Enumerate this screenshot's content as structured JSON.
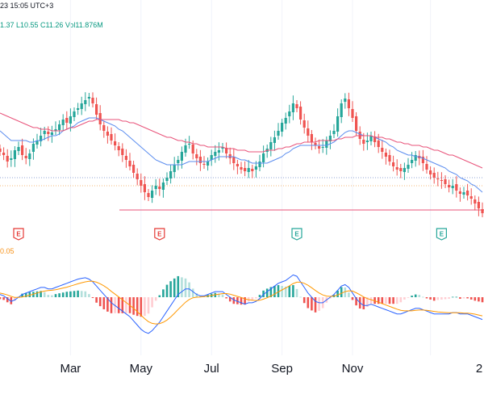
{
  "header": {
    "date_text": "23 15:05 UTC+3",
    "ohlc_text": "1.37  L10.55  C11.26  Vol11.876M"
  },
  "macd_label": "0.05",
  "colors": {
    "up": "#26a69a",
    "down": "#ef5350",
    "ma_blue": "#5b8def",
    "ma_red": "#e8537a",
    "macd_line": "#2962ff",
    "signal_line": "#ff9800",
    "hist_up": "#26a69a",
    "hist_up_light": "#b2dfdb",
    "hist_down": "#ef5350",
    "hist_down_light": "#ffcdd2",
    "support": "#e8537a",
    "earnings_red": "#e53935",
    "earnings_green": "#26a69a"
  },
  "chart_data": {
    "type": "candlestick",
    "x_axis_labels": [
      "Mar",
      "May",
      "Jul",
      "Sep",
      "Nov",
      "2"
    ],
    "earnings_markers": [
      {
        "label": "E",
        "color": "red"
      },
      {
        "label": "E",
        "color": "red"
      },
      {
        "label": "E",
        "color": "green"
      },
      {
        "label": "E",
        "color": "green"
      }
    ],
    "price_closes": [
      13.6,
      13.4,
      13.0,
      13.2,
      13.7,
      13.9,
      13.4,
      13.2,
      13.5,
      14.1,
      14.3,
      14.6,
      14.9,
      14.7,
      14.8,
      15.0,
      15.3,
      15.6,
      15.4,
      15.8,
      16.1,
      16.3,
      16.6,
      16.8,
      17.0,
      16.6,
      15.9,
      15.3,
      14.9,
      14.6,
      14.3,
      14.0,
      13.7,
      13.4,
      13.1,
      12.7,
      12.3,
      11.9,
      11.5,
      11.1,
      10.8,
      11.2,
      11.5,
      11.3,
      11.7,
      12.0,
      12.4,
      12.8,
      13.1,
      13.6,
      14.0,
      14.1,
      13.5,
      13.2,
      12.9,
      12.8,
      13.0,
      13.4,
      13.6,
      13.7,
      13.9,
      13.5,
      13.2,
      12.9,
      12.7,
      12.5,
      12.4,
      12.6,
      12.4,
      12.7,
      13.0,
      13.5,
      13.8,
      14.2,
      14.5,
      14.9,
      15.4,
      15.7,
      16.1,
      16.6,
      16.3,
      15.6,
      15.1,
      14.6,
      14.2,
      14.0,
      13.8,
      13.9,
      14.3,
      14.6,
      14.9,
      15.8,
      16.6,
      16.9,
      16.3,
      15.7,
      14.9,
      14.4,
      14.1,
      14.3,
      14.6,
      14.2,
      13.9,
      13.6,
      13.3,
      13.0,
      12.7,
      12.5,
      12.4,
      12.6,
      12.8,
      13.1,
      13.4,
      13.2,
      12.9,
      12.5,
      12.2,
      12.0,
      11.9,
      11.8,
      11.6,
      11.4,
      11.5,
      11.2,
      11.0,
      11.1,
      10.9,
      10.7,
      10.4,
      10.1,
      9.8
    ],
    "series": [
      {
        "name": "MA blue",
        "values": [
          14.9,
          14.7,
          14.5,
          14.3,
          14.3,
          14.3,
          14.3,
          14.3,
          14.2,
          14.2,
          14.3,
          14.3,
          14.4,
          14.5,
          14.6,
          14.6,
          14.7,
          14.9,
          15.0,
          15.1,
          15.2,
          15.4,
          15.5,
          15.6,
          15.7,
          15.7,
          15.7,
          15.6,
          15.5,
          15.4,
          15.3,
          15.2,
          15.0,
          14.9,
          14.7,
          14.5,
          14.3,
          14.1,
          13.9,
          13.7,
          13.5,
          13.3,
          13.1,
          13.0,
          12.9,
          12.8,
          12.8,
          12.8,
          12.8,
          12.8,
          12.9,
          13.0,
          13.0,
          13.0,
          13.0,
          13.0,
          13.0,
          13.1,
          13.2,
          13.3,
          13.3,
          13.3,
          13.3,
          13.3,
          13.2,
          13.1,
          13.1,
          13.0,
          12.9,
          12.9,
          12.9,
          12.9,
          12.9,
          13.0,
          13.1,
          13.2,
          13.3,
          13.5,
          13.6,
          13.8,
          13.9,
          14.0,
          14.0,
          14.0,
          14.0,
          14.0,
          14.0,
          14.0,
          14.0,
          14.1,
          14.2,
          14.4,
          14.6,
          14.8,
          14.9,
          14.9,
          14.8,
          14.7,
          14.6,
          14.6,
          14.6,
          14.5,
          14.4,
          14.3,
          14.2,
          14.0,
          13.9,
          13.7,
          13.6,
          13.5,
          13.4,
          13.4,
          13.3,
          13.3,
          13.2,
          13.1,
          13.0,
          12.9,
          12.8,
          12.7,
          12.6,
          12.4,
          12.3,
          12.2,
          12.0,
          11.9,
          11.8,
          11.6,
          11.5,
          11.3,
          11.1
        ]
      },
      {
        "name": "MA red",
        "values": [
          16.0,
          15.9,
          15.8,
          15.7,
          15.6,
          15.5,
          15.4,
          15.3,
          15.2,
          15.1,
          15.1,
          15.0,
          15.0,
          15.0,
          14.9,
          14.9,
          14.9,
          14.9,
          15.0,
          15.1,
          15.1,
          15.2,
          15.3,
          15.4,
          15.5,
          15.5,
          15.6,
          15.6,
          15.6,
          15.6,
          15.6,
          15.6,
          15.6,
          15.5,
          15.5,
          15.4,
          15.4,
          15.3,
          15.2,
          15.1,
          15.0,
          14.9,
          14.8,
          14.7,
          14.6,
          14.5,
          14.5,
          14.4,
          14.3,
          14.3,
          14.2,
          14.2,
          14.1,
          14.1,
          14.0,
          14.0,
          13.9,
          13.9,
          13.9,
          13.9,
          13.9,
          13.8,
          13.8,
          13.8,
          13.7,
          13.7,
          13.7,
          13.6,
          13.6,
          13.6,
          13.6,
          13.6,
          13.7,
          13.7,
          13.7,
          13.8,
          13.8,
          13.9,
          13.9,
          14.0,
          14.1,
          14.1,
          14.2,
          14.2,
          14.2,
          14.2,
          14.3,
          14.3,
          14.3,
          14.3,
          14.3,
          14.4,
          14.4,
          14.5,
          14.5,
          14.5,
          14.6,
          14.6,
          14.6,
          14.6,
          14.6,
          14.5,
          14.5,
          14.5,
          14.4,
          14.4,
          14.3,
          14.2,
          14.2,
          14.1,
          14.1,
          14.0,
          14.0,
          14.0,
          13.9,
          13.9,
          13.8,
          13.7,
          13.7,
          13.6,
          13.5,
          13.4,
          13.4,
          13.3,
          13.2,
          13.1,
          13.0,
          12.9,
          12.8,
          12.7,
          12.6
        ]
      }
    ],
    "reference_lines": {
      "support": 10.0,
      "dotted_blue": 12.0,
      "dotted_orange": 11.5
    },
    "ylim": [
      9.5,
      18.5
    ],
    "macd": {
      "macd_values": [
        0.1,
        0.05,
        -0.05,
        -0.15,
        -0.1,
        0.0,
        0.1,
        0.15,
        0.2,
        0.25,
        0.3,
        0.35,
        0.35,
        0.3,
        0.3,
        0.35,
        0.4,
        0.45,
        0.5,
        0.55,
        0.6,
        0.65,
        0.68,
        0.7,
        0.65,
        0.55,
        0.4,
        0.25,
        0.1,
        -0.05,
        -0.2,
        -0.3,
        -0.4,
        -0.5,
        -0.6,
        -0.7,
        -0.85,
        -1.0,
        -1.15,
        -1.25,
        -1.3,
        -1.2,
        -1.05,
        -0.9,
        -0.7,
        -0.5,
        -0.3,
        -0.1,
        0.1,
        0.2,
        0.3,
        0.3,
        0.2,
        0.1,
        0.05,
        0.05,
        0.1,
        0.15,
        0.2,
        0.2,
        0.2,
        0.1,
        0.0,
        -0.1,
        -0.15,
        -0.2,
        -0.25,
        -0.2,
        -0.2,
        -0.15,
        -0.05,
        0.1,
        0.2,
        0.3,
        0.4,
        0.5,
        0.55,
        0.6,
        0.7,
        0.8,
        0.75,
        0.55,
        0.35,
        0.15,
        0.0,
        -0.15,
        -0.2,
        -0.2,
        -0.1,
        0.0,
        0.1,
        0.25,
        0.4,
        0.45,
        0.35,
        0.15,
        -0.05,
        -0.2,
        -0.3,
        -0.3,
        -0.25,
        -0.3,
        -0.35,
        -0.4,
        -0.45,
        -0.5,
        -0.55,
        -0.6,
        -0.6,
        -0.55,
        -0.5,
        -0.45,
        -0.4,
        -0.4,
        -0.45,
        -0.5,
        -0.55,
        -0.6,
        -0.6,
        -0.6,
        -0.6,
        -0.6,
        -0.55,
        -0.55,
        -0.6,
        -0.6,
        -0.6,
        -0.65,
        -0.7,
        -0.75,
        -0.8
      ],
      "signal_values": [
        0.15,
        0.12,
        0.08,
        0.03,
        -0.01,
        -0.01,
        0.01,
        0.04,
        0.07,
        0.11,
        0.15,
        0.19,
        0.22,
        0.24,
        0.25,
        0.27,
        0.3,
        0.33,
        0.36,
        0.4,
        0.44,
        0.48,
        0.52,
        0.55,
        0.57,
        0.57,
        0.54,
        0.48,
        0.41,
        0.32,
        0.21,
        0.11,
        0.01,
        -0.09,
        -0.19,
        -0.29,
        -0.4,
        -0.52,
        -0.65,
        -0.77,
        -0.88,
        -0.94,
        -0.96,
        -0.95,
        -0.9,
        -0.82,
        -0.71,
        -0.58,
        -0.44,
        -0.31,
        -0.18,
        -0.08,
        -0.02,
        0.0,
        0.01,
        0.02,
        0.04,
        0.06,
        0.09,
        0.11,
        0.13,
        0.13,
        0.11,
        0.07,
        0.03,
        -0.01,
        -0.06,
        -0.09,
        -0.11,
        -0.12,
        -0.11,
        -0.07,
        -0.02,
        0.04,
        0.11,
        0.19,
        0.26,
        0.33,
        0.41,
        0.49,
        0.54,
        0.54,
        0.5,
        0.43,
        0.34,
        0.24,
        0.15,
        0.08,
        0.04,
        0.03,
        0.04,
        0.08,
        0.14,
        0.2,
        0.23,
        0.22,
        0.16,
        0.09,
        0.01,
        -0.05,
        -0.09,
        -0.13,
        -0.18,
        -0.23,
        -0.28,
        -0.33,
        -0.38,
        -0.43,
        -0.47,
        -0.49,
        -0.49,
        -0.49,
        -0.47,
        -0.46,
        -0.46,
        -0.47,
        -0.49,
        -0.51,
        -0.53,
        -0.54,
        -0.55,
        -0.56,
        -0.56,
        -0.56,
        -0.56,
        -0.57,
        -0.57,
        -0.59,
        -0.61,
        -0.64,
        -0.67
      ]
    }
  }
}
